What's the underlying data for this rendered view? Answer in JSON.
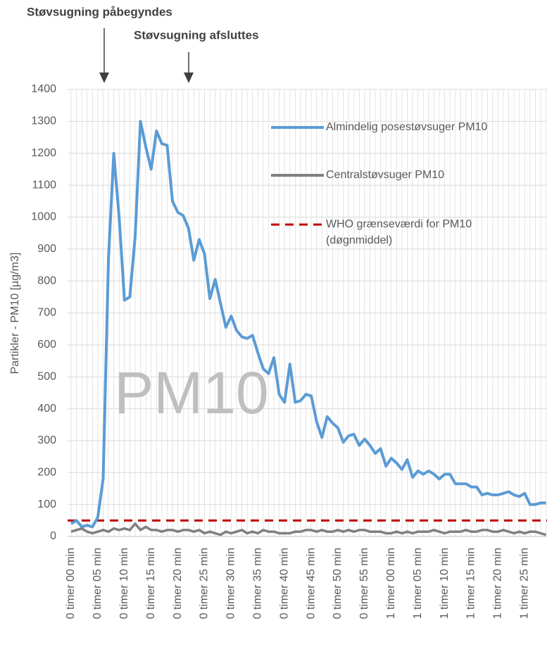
{
  "chart_data": {
    "type": "line",
    "annotations": [
      "Støvsugning påbegyndes",
      "Støvsugning afsluttes"
    ],
    "watermark": "PM10",
    "y_label": "Partikler - PM10 [µg/m3]",
    "ylim": [
      0,
      1400
    ],
    "yticks": [
      0,
      100,
      200,
      300,
      400,
      500,
      600,
      700,
      800,
      900,
      1000,
      1100,
      1200,
      1300,
      1400
    ],
    "grid": true,
    "categories": [
      "0 timer 00 min",
      null,
      null,
      null,
      null,
      "0 timer 05 min",
      null,
      null,
      null,
      null,
      "0 timer 10 min",
      null,
      null,
      null,
      null,
      "0 timer 15 min",
      null,
      null,
      null,
      null,
      "0 timer 20 min",
      null,
      null,
      null,
      null,
      "0 timer 25 min",
      null,
      null,
      null,
      null,
      "0 timer 30 min",
      null,
      null,
      null,
      null,
      "0 timer 35 min",
      null,
      null,
      null,
      null,
      "0 timer 40 min",
      null,
      null,
      null,
      null,
      "0 timer 45 min",
      null,
      null,
      null,
      null,
      "0 timer 50 min",
      null,
      null,
      null,
      null,
      "0 timer 55 min",
      null,
      null,
      null,
      null,
      "1 timer 00 min",
      null,
      null,
      null,
      null,
      "1 timer 05 min",
      null,
      null,
      null,
      null,
      "1 timer 10 min",
      null,
      null,
      null,
      null,
      "1 timer 15 min",
      null,
      null,
      null,
      null,
      "1 timer 20 min",
      null,
      null,
      null,
      null,
      "1 timer 25 min",
      null,
      null,
      null,
      null
    ],
    "series": [
      {
        "name": "Almindelig posestøvsuger PM10",
        "color": "#5b9bd5",
        "values": [
          40,
          50,
          30,
          35,
          30,
          60,
          180,
          870,
          1200,
          1000,
          740,
          750,
          940,
          1300,
          1220,
          1150,
          1270,
          1230,
          1225,
          1050,
          1015,
          1005,
          965,
          865,
          930,
          885,
          745,
          805,
          730,
          655,
          690,
          645,
          625,
          620,
          630,
          575,
          525,
          510,
          560,
          445,
          420,
          540,
          420,
          425,
          445,
          440,
          360,
          310,
          375,
          355,
          340,
          295,
          315,
          320,
          285,
          305,
          285,
          260,
          275,
          220,
          245,
          230,
          210,
          240,
          185,
          205,
          195,
          205,
          195,
          180,
          195,
          195,
          165,
          165,
          165,
          155,
          155,
          130,
          135,
          130,
          130,
          135,
          140,
          130,
          125,
          135,
          100,
          100,
          105,
          105
        ]
      },
      {
        "name": "Centralstøvsuger PM10",
        "color": "#7f7f7f",
        "values": [
          15,
          20,
          25,
          15,
          10,
          15,
          20,
          15,
          25,
          20,
          25,
          20,
          40,
          20,
          30,
          20,
          20,
          15,
          20,
          20,
          15,
          20,
          20,
          15,
          20,
          10,
          15,
          10,
          5,
          15,
          10,
          15,
          20,
          10,
          15,
          10,
          20,
          15,
          15,
          10,
          10,
          10,
          15,
          15,
          20,
          20,
          15,
          20,
          15,
          15,
          20,
          15,
          20,
          15,
          20,
          20,
          15,
          15,
          15,
          10,
          10,
          15,
          10,
          15,
          10,
          15,
          15,
          15,
          20,
          15,
          10,
          15,
          15,
          15,
          20,
          15,
          15,
          20,
          20,
          15,
          15,
          20,
          15,
          10,
          15,
          10,
          15,
          15,
          10,
          5
        ]
      }
    ],
    "reference_line": {
      "name_lines": [
        "WHO grænseværdi for PM10",
        "(døgnmiddel)"
      ],
      "value": 50,
      "color": "#c00000",
      "dashed": true
    },
    "legend": "upper right"
  }
}
